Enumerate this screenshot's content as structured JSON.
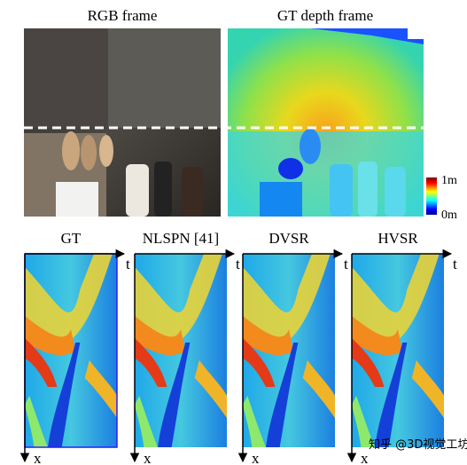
{
  "top_panels": [
    {
      "title": "RGB frame"
    },
    {
      "title": "GT depth frame"
    }
  ],
  "colorbar": {
    "max_label": "1m",
    "min_label": "0m"
  },
  "bottom_panels": [
    {
      "title": "GT"
    },
    {
      "title": "NLSPN [41]"
    },
    {
      "title": "DVSR"
    },
    {
      "title": "HVSR"
    }
  ],
  "axes": {
    "t": "t",
    "x": "x"
  },
  "watermark": "知乎 @3D视觉工坊"
}
